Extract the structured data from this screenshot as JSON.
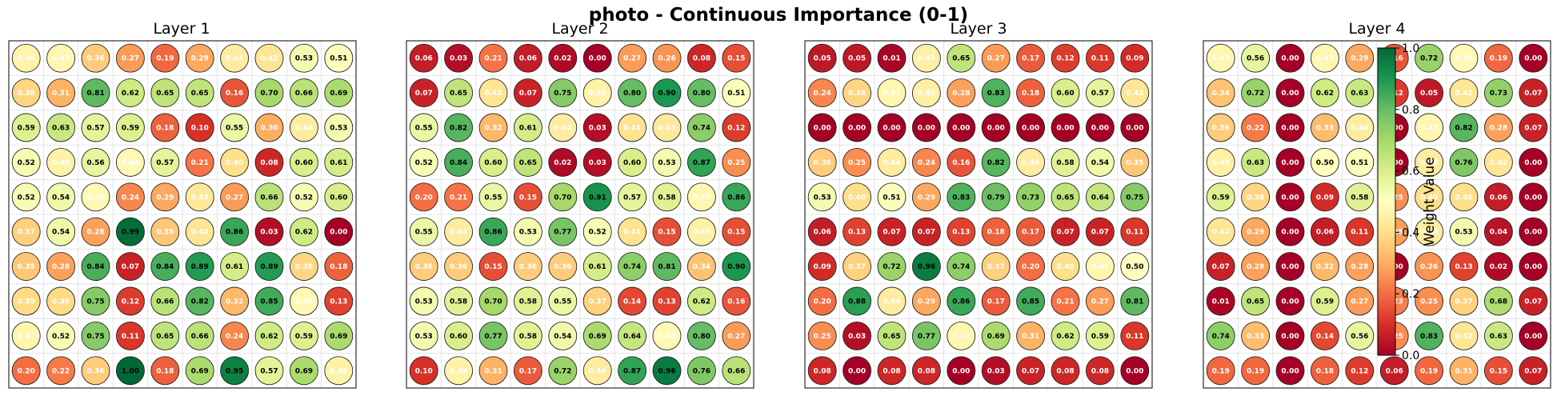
{
  "title": "photo - Continuous Importance (0-1)",
  "colorbar": {
    "label": "Weight Value",
    "range": [
      0,
      1
    ],
    "ticks": [
      "0.0",
      "0.2",
      "0.4",
      "0.6",
      "0.8",
      "1.0"
    ],
    "colormap": "RdYlGn"
  },
  "chart_data": [
    {
      "type": "heatmap",
      "title": "Layer 1",
      "rows": 10,
      "cols": 10,
      "values": [
        [
          0.46,
          0.47,
          0.36,
          0.27,
          0.19,
          0.29,
          0.44,
          0.42,
          0.53,
          0.51
        ],
        [
          0.38,
          0.31,
          0.81,
          0.62,
          0.65,
          0.65,
          0.16,
          0.7,
          0.66,
          0.69
        ],
        [
          0.59,
          0.63,
          0.57,
          0.59,
          0.18,
          0.1,
          0.55,
          0.3,
          0.44,
          0.53
        ],
        [
          0.52,
          0.46,
          0.56,
          0.48,
          0.57,
          0.21,
          0.4,
          0.08,
          0.6,
          0.61
        ],
        [
          0.52,
          0.54,
          0.48,
          0.24,
          0.29,
          0.43,
          0.27,
          0.66,
          0.52,
          0.6
        ],
        [
          0.37,
          0.54,
          0.28,
          0.99,
          0.35,
          0.42,
          0.86,
          0.03,
          0.62,
          0.0
        ],
        [
          0.35,
          0.28,
          0.84,
          0.07,
          0.84,
          0.89,
          0.61,
          0.89,
          0.38,
          0.18
        ],
        [
          0.39,
          0.39,
          0.75,
          0.12,
          0.66,
          0.82,
          0.32,
          0.85,
          0.48,
          0.13
        ],
        [
          0.47,
          0.52,
          0.75,
          0.11,
          0.65,
          0.66,
          0.24,
          0.62,
          0.59,
          0.69
        ],
        [
          0.2,
          0.22,
          0.36,
          1.0,
          0.18,
          0.69,
          0.95,
          0.57,
          0.69,
          0.46
        ]
      ]
    },
    {
      "type": "heatmap",
      "title": "Layer 2",
      "rows": 10,
      "cols": 10,
      "values": [
        [
          0.06,
          0.03,
          0.21,
          0.06,
          0.02,
          0.0,
          0.27,
          0.26,
          0.08,
          0.15
        ],
        [
          0.07,
          0.65,
          0.42,
          0.07,
          0.75,
          0.46,
          0.8,
          0.9,
          0.8,
          0.51
        ],
        [
          0.55,
          0.82,
          0.32,
          0.61,
          0.44,
          0.03,
          0.41,
          0.43,
          0.74,
          0.12
        ],
        [
          0.52,
          0.84,
          0.6,
          0.65,
          0.02,
          0.03,
          0.6,
          0.53,
          0.87,
          0.25
        ],
        [
          0.2,
          0.21,
          0.55,
          0.15,
          0.7,
          0.91,
          0.57,
          0.58,
          0.47,
          0.86
        ],
        [
          0.55,
          0.44,
          0.86,
          0.53,
          0.77,
          0.52,
          0.41,
          0.15,
          0.45,
          0.15
        ],
        [
          0.36,
          0.36,
          0.15,
          0.36,
          0.36,
          0.61,
          0.74,
          0.81,
          0.34,
          0.9
        ],
        [
          0.53,
          0.58,
          0.7,
          0.58,
          0.55,
          0.37,
          0.14,
          0.13,
          0.62,
          0.16
        ],
        [
          0.53,
          0.6,
          0.77,
          0.58,
          0.54,
          0.69,
          0.64,
          0.48,
          0.8,
          0.27
        ],
        [
          0.1,
          0.46,
          0.31,
          0.17,
          0.72,
          0.44,
          0.87,
          0.96,
          0.76,
          0.66
        ]
      ]
    },
    {
      "type": "heatmap",
      "title": "Layer 3",
      "rows": 10,
      "cols": 10,
      "values": [
        [
          0.05,
          0.05,
          0.01,
          0.45,
          0.65,
          0.27,
          0.17,
          0.12,
          0.11,
          0.09
        ],
        [
          0.24,
          0.38,
          0.47,
          0.45,
          0.28,
          0.83,
          0.18,
          0.6,
          0.57,
          0.42
        ],
        [
          0.0,
          0.0,
          0.0,
          0.0,
          0.0,
          0.0,
          0.0,
          0.0,
          0.0,
          0.0
        ],
        [
          0.36,
          0.25,
          0.44,
          0.24,
          0.16,
          0.82,
          0.44,
          0.58,
          0.54,
          0.35
        ],
        [
          0.53,
          0.4,
          0.51,
          0.29,
          0.83,
          0.79,
          0.73,
          0.65,
          0.64,
          0.75
        ],
        [
          0.06,
          0.13,
          0.07,
          0.07,
          0.13,
          0.18,
          0.17,
          0.07,
          0.07,
          0.11
        ],
        [
          0.09,
          0.37,
          0.72,
          0.96,
          0.74,
          0.37,
          0.2,
          0.4,
          0.47,
          0.5
        ],
        [
          0.2,
          0.88,
          0.44,
          0.29,
          0.86,
          0.17,
          0.85,
          0.21,
          0.27,
          0.81
        ],
        [
          0.25,
          0.03,
          0.65,
          0.77,
          0.47,
          0.69,
          0.31,
          0.62,
          0.59,
          0.11
        ],
        [
          0.08,
          0.0,
          0.08,
          0.08,
          0.0,
          0.03,
          0.07,
          0.08,
          0.08,
          0.0
        ]
      ]
    },
    {
      "type": "heatmap",
      "title": "Layer 4",
      "rows": 10,
      "cols": 10,
      "values": [
        [
          0.47,
          0.56,
          0.0,
          0.47,
          0.29,
          0.16,
          0.72,
          0.48,
          0.19,
          0.0
        ],
        [
          0.34,
          0.72,
          0.0,
          0.62,
          0.63,
          0.12,
          0.05,
          0.42,
          0.73,
          0.07
        ],
        [
          0.36,
          0.22,
          0.0,
          0.33,
          0.44,
          0.0,
          0.47,
          0.82,
          0.28,
          0.07
        ],
        [
          0.45,
          0.63,
          0.0,
          0.5,
          0.51,
          0.0,
          0.44,
          0.76,
          0.42,
          0.0
        ],
        [
          0.59,
          0.38,
          0.0,
          0.09,
          0.58,
          0.25,
          0.4,
          0.4,
          0.06,
          0.0
        ],
        [
          0.42,
          0.29,
          0.0,
          0.06,
          0.11,
          0.28,
          0.44,
          0.53,
          0.04,
          0.0
        ],
        [
          0.07,
          0.28,
          0.0,
          0.32,
          0.28,
          0.0,
          0.26,
          0.13,
          0.02,
          0.0
        ],
        [
          0.01,
          0.65,
          0.0,
          0.59,
          0.27,
          0.23,
          0.25,
          0.37,
          0.68,
          0.07
        ],
        [
          0.74,
          0.33,
          0.0,
          0.14,
          0.56,
          0.25,
          0.83,
          0.42,
          0.63,
          0.0
        ],
        [
          0.19,
          0.19,
          0.0,
          0.18,
          0.12,
          0.06,
          0.19,
          0.31,
          0.15,
          0.07
        ]
      ]
    }
  ]
}
